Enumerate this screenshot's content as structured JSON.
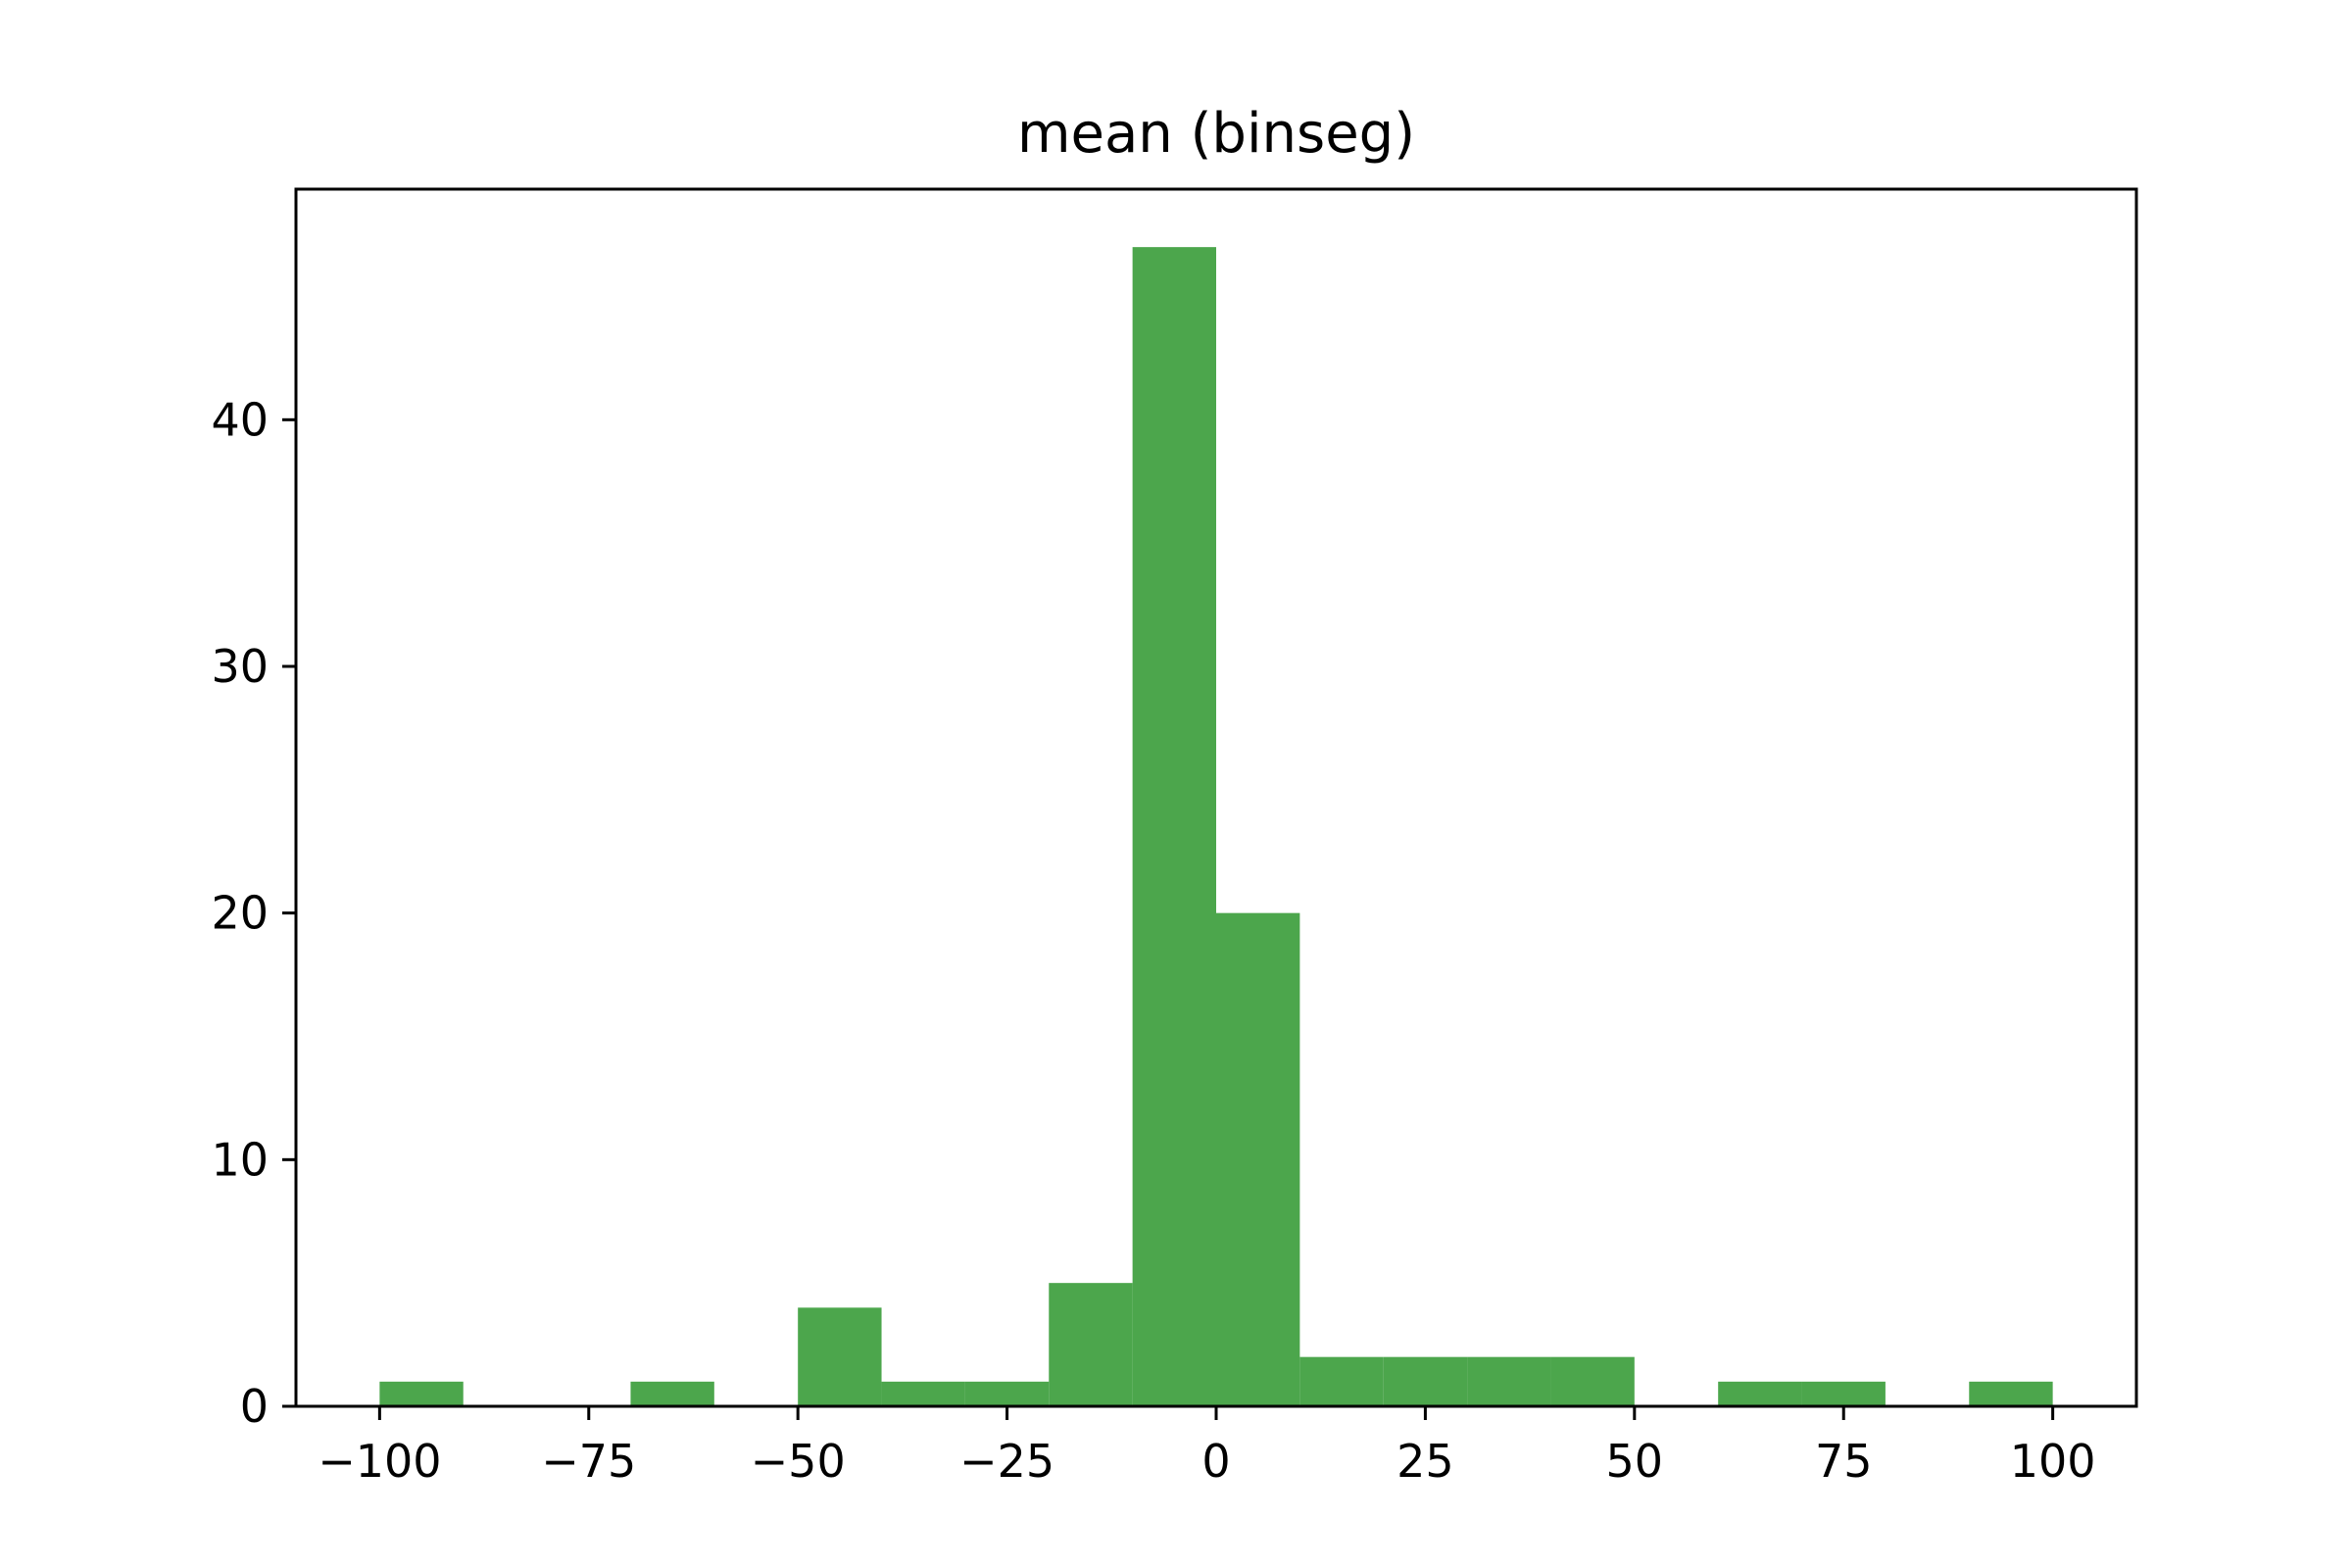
{
  "chart_data": {
    "type": "bar",
    "subtype": "histogram",
    "title": "mean (binseg)",
    "xlabel": "",
    "ylabel": "",
    "bar_color": "#4ca64c",
    "bin_edges": [
      -100,
      -90,
      -80,
      -70,
      -60,
      -50,
      -40,
      -30,
      -20,
      -10,
      0,
      10,
      20,
      30,
      40,
      50,
      60,
      70,
      80,
      90,
      100
    ],
    "counts": [
      1,
      0,
      0,
      1,
      0,
      4,
      1,
      1,
      5,
      47,
      20,
      2,
      2,
      2,
      2,
      0,
      1,
      1,
      0,
      1
    ],
    "xlim": [
      -110,
      110
    ],
    "ylim": [
      0,
      49.35
    ],
    "xticks": [
      -100,
      -75,
      -50,
      -25,
      0,
      25,
      50,
      75,
      100
    ],
    "xtick_labels": [
      "−100",
      "−75",
      "−50",
      "−25",
      "0",
      "25",
      "50",
      "75",
      "100"
    ],
    "yticks": [
      0,
      10,
      20,
      30,
      40
    ],
    "ytick_labels": [
      "0",
      "10",
      "20",
      "30",
      "40"
    ],
    "grid": false,
    "legend": false
  }
}
